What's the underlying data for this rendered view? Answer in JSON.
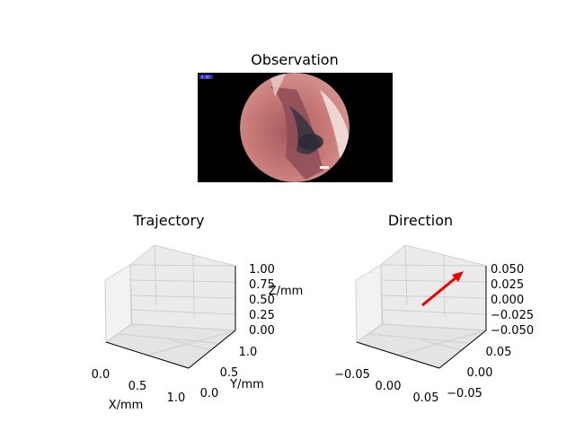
{
  "figure": {
    "observation_title": "Observation",
    "observation_badge_text": "0:00"
  },
  "chart_data": [
    {
      "type": "image",
      "title": "Observation",
      "description_colors": {
        "background": "#000000",
        "tissue": "#c0706e"
      }
    },
    {
      "type": "line3d",
      "title": "Trajectory",
      "xlabel": "X/mm",
      "ylabel": "Y/mm",
      "zlabel": "Z/mm",
      "x_ticks": [
        "0.0",
        "0.5",
        "1.0"
      ],
      "y_ticks": [
        "0.0",
        "0.5",
        "1.0"
      ],
      "z_ticks": [
        "0.00",
        "0.25",
        "0.50",
        "0.75",
        "1.00"
      ],
      "xlim": [
        0,
        1
      ],
      "ylim": [
        0,
        1
      ],
      "zlim": [
        0,
        1
      ],
      "series": []
    },
    {
      "type": "quiver3d",
      "title": "Direction",
      "x_ticks": [
        "−0.05",
        "0.00",
        "0.05"
      ],
      "y_ticks": [
        "−0.05",
        "0.00",
        "0.05"
      ],
      "z_ticks": [
        "0.050",
        "0.025",
        "0.000",
        "−0.025",
        "−0.050"
      ],
      "xlim": [
        -0.05,
        0.05
      ],
      "ylim": [
        -0.05,
        0.05
      ],
      "zlim": [
        -0.05,
        0.05
      ],
      "arrow_color": "#ee0000"
    }
  ]
}
